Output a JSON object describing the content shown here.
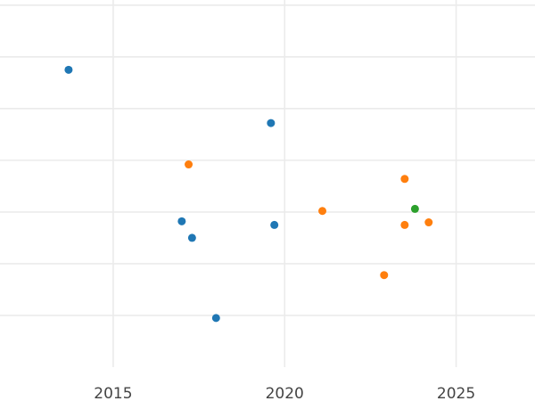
{
  "chart_data": {
    "type": "scatter",
    "title": "",
    "xlabel": "",
    "ylabel": "",
    "grid": true,
    "legend": "none",
    "xlim": [
      2011.7,
      2027.3
    ],
    "ylim": [
      0,
      7.1
    ],
    "x_ticks": [
      2015,
      2020,
      2025
    ],
    "y_gridlines": [
      1,
      2,
      3,
      4,
      5,
      6,
      7
    ],
    "series": [
      {
        "color": "#1f77b4",
        "points": [
          {
            "x": 2013.7,
            "y": 5.75
          },
          {
            "x": 2019.6,
            "y": 4.72
          },
          {
            "x": 2017.0,
            "y": 2.82
          },
          {
            "x": 2017.3,
            "y": 2.5
          },
          {
            "x": 2019.7,
            "y": 2.75
          },
          {
            "x": 2018.0,
            "y": 0.95
          }
        ]
      },
      {
        "color": "#ff7f0e",
        "points": [
          {
            "x": 2017.2,
            "y": 3.92
          },
          {
            "x": 2023.5,
            "y": 3.64
          },
          {
            "x": 2021.1,
            "y": 3.02
          },
          {
            "x": 2023.5,
            "y": 2.75
          },
          {
            "x": 2024.2,
            "y": 2.8
          },
          {
            "x": 2022.9,
            "y": 1.78
          }
        ]
      },
      {
        "color": "#2ca02c",
        "points": [
          {
            "x": 2023.8,
            "y": 3.06
          }
        ]
      }
    ]
  }
}
